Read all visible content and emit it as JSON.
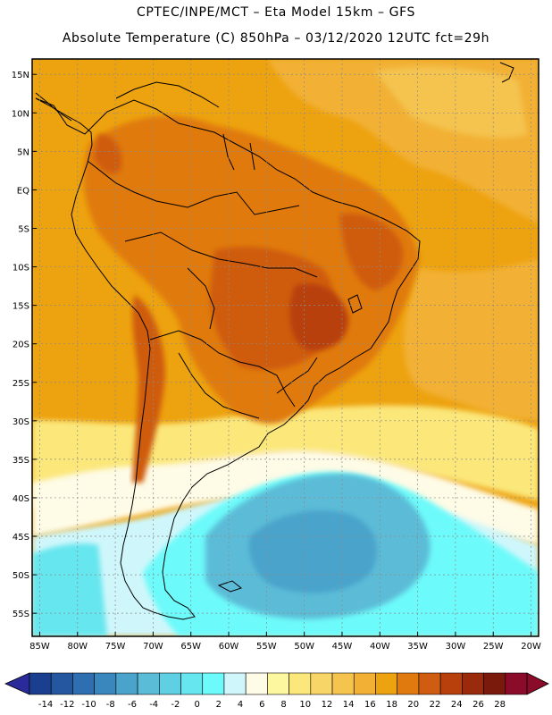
{
  "header": {
    "line1": "CPTEC/INPE/MCT –  Eta Model 15km – GFS",
    "line2": "Absolute Temperature (C) 850hPa – 03/12/2020 12UTC fct=29h"
  },
  "map": {
    "region": "South America",
    "variable": "Absolute Temperature (C) 850hPa",
    "lat_labels": [
      "15N",
      "10N",
      "5N",
      "EQ",
      "5S",
      "10S",
      "15S",
      "20S",
      "25S",
      "30S",
      "35S",
      "40S",
      "45S",
      "50S",
      "55S"
    ],
    "lon_labels": [
      "85W",
      "80W",
      "75W",
      "70W",
      "65W",
      "60W",
      "55W",
      "50W",
      "45W",
      "40W",
      "35W",
      "30W",
      "25W",
      "20W"
    ],
    "lat_range": [
      17,
      -58
    ],
    "lon_range": [
      -86,
      -19
    ]
  },
  "colorbar": {
    "labels": [
      "-14",
      "-12",
      "-10",
      "-8",
      "-6",
      "-4",
      "-2",
      "0",
      "2",
      "4",
      "6",
      "8",
      "10",
      "12",
      "14",
      "16",
      "18",
      "20",
      "22",
      "24",
      "26",
      "28"
    ],
    "colors": [
      "#1a3f8e",
      "#2457a0",
      "#2d6fb1",
      "#3987bd",
      "#4aa3cb",
      "#5bbcd7",
      "#5fd0e3",
      "#66e6ef",
      "#6dfafa",
      "#cff7fb",
      "#fefbe6",
      "#fdf7a0",
      "#fbe77a",
      "#f8d567",
      "#f4c44f",
      "#f2b135",
      "#eda20f",
      "#e07a0e",
      "#cf5c10",
      "#b8400d",
      "#9a2a0c",
      "#7a1a0c",
      "#8a0b2a"
    ],
    "under_color": "#2a2a9a",
    "over_color": "#8a0b2a"
  }
}
